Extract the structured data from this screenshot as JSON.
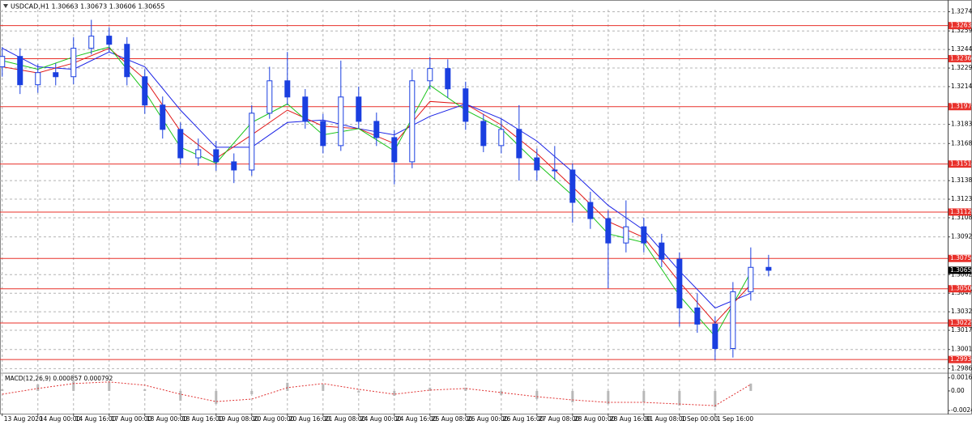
{
  "chart_data": {
    "type": "candlestick",
    "title": "USDCAD,H1  1.30663 1.30673 1.30606 1.30655",
    "x": [
      0,
      4,
      8,
      12,
      16,
      20,
      24,
      28,
      32,
      36,
      40,
      44,
      48,
      52,
      56,
      60,
      64,
      68,
      72,
      76,
      80,
      84,
      88,
      92,
      96,
      100,
      104,
      108,
      112,
      116,
      120,
      124,
      128,
      132,
      136,
      140,
      144,
      148,
      152,
      156,
      160,
      164,
      168,
      172
    ],
    "open": [
      1.323,
      1.32384,
      1.32155,
      1.32253,
      1.3222,
      1.3245,
      1.32548,
      1.32482,
      1.3222,
      1.31991,
      1.31794,
      1.31564,
      1.3163,
      1.31532,
      1.31466,
      1.31925,
      1.32187,
      1.32056,
      1.31859,
      1.31663,
      1.32056,
      1.31859,
      1.31728,
      1.31532,
      1.32187,
      1.32286,
      1.32122,
      1.31859,
      1.31663,
      1.31794,
      1.31564,
      1.31466,
      1.31466,
      1.31204,
      1.31073,
      1.30876,
      1.31007,
      1.30876,
      1.30745,
      1.30351,
      1.3022,
      1.30023,
      1.30482,
      1.30679
    ],
    "high": [
      1.3246,
      1.3245,
      1.3232,
      1.3233,
      1.3254,
      1.3268,
      1.3262,
      1.3254,
      1.3228,
      1.3206,
      1.3185,
      1.3172,
      1.317,
      1.316,
      1.3199,
      1.323,
      1.3242,
      1.3212,
      1.3192,
      1.3235,
      1.3214,
      1.3193,
      1.3179,
      1.3228,
      1.3238,
      1.3236,
      1.3218,
      1.3192,
      1.3188,
      1.3199,
      1.3164,
      1.3166,
      1.3152,
      1.3129,
      1.3114,
      1.3122,
      1.3108,
      1.3095,
      1.308,
      1.3047,
      1.3028,
      1.3056,
      1.3084,
      1.3078
    ],
    "low": [
      1.3222,
      1.3208,
      1.3209,
      1.3215,
      1.3216,
      1.324,
      1.3242,
      1.3215,
      1.3192,
      1.3172,
      1.3151,
      1.315,
      1.3146,
      1.3136,
      1.3142,
      1.3188,
      1.3199,
      1.318,
      1.316,
      1.3162,
      1.318,
      1.3166,
      1.3135,
      1.3148,
      1.3212,
      1.3205,
      1.3179,
      1.3161,
      1.316,
      1.3138,
      1.3138,
      1.3139,
      1.3104,
      1.3099,
      1.3051,
      1.308,
      1.308,
      1.3068,
      1.302,
      1.3015,
      1.2993,
      1.2995,
      1.3041,
      1.30606
    ],
    "close": [
      1.32384,
      1.32155,
      1.32253,
      1.3222,
      1.3245,
      1.32548,
      1.32482,
      1.3222,
      1.31991,
      1.31794,
      1.31564,
      1.3163,
      1.31532,
      1.31466,
      1.31925,
      1.32187,
      1.32056,
      1.31859,
      1.31663,
      1.32056,
      1.31859,
      1.31728,
      1.31532,
      1.32187,
      1.32286,
      1.32122,
      1.31859,
      1.31663,
      1.31794,
      1.31564,
      1.31466,
      1.31466,
      1.31204,
      1.31073,
      1.30876,
      1.31007,
      1.30876,
      1.30745,
      1.30351,
      1.3022,
      1.30023,
      1.30482,
      1.30679,
      1.30655
    ],
    "color": "#1a3fe0",
    "xlim": [
      -0.5,
      212.2
    ],
    "ylim": [
      1.2983,
      1.3284
    ],
    "yticks": [
      1.32745,
      {
        "value": 1.3259,
        "label": "1.32590"
      },
      {
        "value": 1.3244,
        "label": "1.32440"
      },
      {
        "value": 1.3229,
        "label": "1.32290"
      },
      {
        "value": 1.3214,
        "label": "1.32140"
      },
      1.31835,
      {
        "value": 1.3168,
        "label": "1.31680"
      },
      {
        "value": 1.3138,
        "label": "1.31380"
      },
      {
        "value": 1.3123,
        "label": "1.31230"
      },
      {
        "value": 1.3108,
        "label": "1.31080"
      },
      1.30925,
      {
        "value": 1.3062,
        "label": "1.30620"
      },
      {
        "value": 1.3047,
        "label": "1.30470"
      },
      {
        "value": 1.3032,
        "label": "1.30320"
      },
      {
        "value": 1.3017,
        "label": "1.30170"
      },
      1.30015,
      {
        "value": 1.2986,
        "label": "1.29860"
      }
    ],
    "xticks": [
      {
        "value": 0,
        "label": "13 Aug 2020"
      },
      {
        "value": 8,
        "label": "14 Aug 00:00"
      },
      {
        "value": 16,
        "label": "14 Aug 16:00"
      },
      {
        "value": 24,
        "label": "17 Aug 00:00"
      },
      {
        "value": 32,
        "label": "18 Aug 00:00"
      },
      {
        "value": 40,
        "label": "18 Aug 16:00"
      },
      {
        "value": 48,
        "label": "19 Aug 08:00"
      },
      {
        "value": 56,
        "label": "20 Aug 00:00"
      },
      {
        "value": 64,
        "label": "20 Aug 16:00"
      },
      {
        "value": 72,
        "label": "21 Aug 08:00"
      },
      {
        "value": 80,
        "label": "24 Aug 00:00"
      },
      {
        "value": 88,
        "label": "24 Aug 16:00"
      },
      {
        "value": 96,
        "label": "25 Aug 08:00"
      },
      {
        "value": 104,
        "label": "26 Aug 00:00"
      },
      {
        "value": 112,
        "label": "26 Aug 16:00"
      },
      {
        "value": 120,
        "label": "27 Aug 08:00"
      },
      {
        "value": 128,
        "label": "28 Aug 00:00"
      },
      {
        "value": 136,
        "label": "28 Aug 16:00"
      },
      {
        "value": 144,
        "label": "31 Aug 08:00"
      },
      {
        "value": 152,
        "label": "1 Sep 00:00"
      },
      {
        "value": 160,
        "label": "1 Sep 16:00"
      }
    ],
    "grid": true,
    "moving_averages": [
      {
        "color": "#1a22e6",
        "x": [
          0,
          8,
          16,
          24,
          32,
          40,
          48,
          56,
          64,
          72,
          80,
          88,
          96,
          104,
          112,
          120,
          128,
          136,
          144,
          152,
          160,
          168
        ],
        "values": [
          1.3245,
          1.323,
          1.3228,
          1.3242,
          1.323,
          1.3195,
          1.3165,
          1.3165,
          1.3185,
          1.3187,
          1.318,
          1.3175,
          1.319,
          1.32,
          1.3188,
          1.317,
          1.3145,
          1.3118,
          1.3098,
          1.3065,
          1.3035,
          1.3047
        ]
      },
      {
        "color": "#e01818",
        "x": [
          0,
          8,
          16,
          24,
          32,
          40,
          48,
          56,
          64,
          72,
          80,
          88,
          96,
          104,
          112,
          120,
          128,
          136,
          144,
          152,
          160,
          168
        ],
        "values": [
          1.323,
          1.3225,
          1.3233,
          1.3245,
          1.322,
          1.3178,
          1.3156,
          1.3175,
          1.3195,
          1.3182,
          1.318,
          1.3168,
          1.3202,
          1.32,
          1.3183,
          1.316,
          1.3133,
          1.3105,
          1.3092,
          1.3056,
          1.3023,
          1.3054
        ]
      },
      {
        "color": "#19c419",
        "x": [
          0,
          8,
          16,
          24,
          32,
          40,
          48,
          56,
          64,
          72,
          80,
          88,
          96,
          104,
          112,
          120,
          128,
          136,
          144,
          152,
          160,
          168
        ],
        "values": [
          1.3235,
          1.3228,
          1.3238,
          1.3246,
          1.321,
          1.3165,
          1.3152,
          1.3185,
          1.32,
          1.3175,
          1.318,
          1.3162,
          1.3215,
          1.3195,
          1.318,
          1.3152,
          1.3126,
          1.3095,
          1.3088,
          1.3045,
          1.3012,
          1.3064
        ]
      }
    ],
    "levels": [
      1.32633,
      1.32366,
      1.31978,
      1.31514,
      1.31126,
      1.30751,
      1.30506,
      1.30229,
      1.29934
    ],
    "level_color": "#e8302a",
    "current_price": 1.30655,
    "macd": {
      "title": "MACD(12,26,9) 0.000857 0.000792",
      "ylim": [
        -0.00278,
        0.00207
      ],
      "yticks": [
        0.0016,
        {
          "value": 0,
          "label": "0.00"
        },
        -0.0024
      ],
      "x": [
        0,
        8,
        16,
        24,
        32,
        40,
        48,
        56,
        64,
        72,
        80,
        88,
        96,
        104,
        112,
        120,
        128,
        136,
        144,
        152,
        160,
        168
      ],
      "histogram": [
        0.0002,
        0.0008,
        0.0012,
        0.0011,
        0.0002,
        -0.0012,
        -0.0016,
        -0.0004,
        0.001,
        0.0008,
        -0.0002,
        -0.0006,
        0.0004,
        0.0004,
        -0.0005,
        -0.001,
        -0.0014,
        -0.0016,
        -0.0014,
        -0.0018,
        -0.002,
        0.0009
      ],
      "signal": [
        -0.0004,
        0.0003,
        0.0009,
        0.0011,
        0.0007,
        -0.0004,
        -0.0013,
        -0.001,
        0.0004,
        0.0009,
        0.0002,
        -0.0004,
        0.0001,
        0.0003,
        -0.0002,
        -0.0007,
        -0.0011,
        -0.0014,
        -0.0014,
        -0.0016,
        -0.0018,
        0.0008
      ],
      "histogram_color": "#b8b8b8",
      "signal_color": "#e03030"
    }
  }
}
